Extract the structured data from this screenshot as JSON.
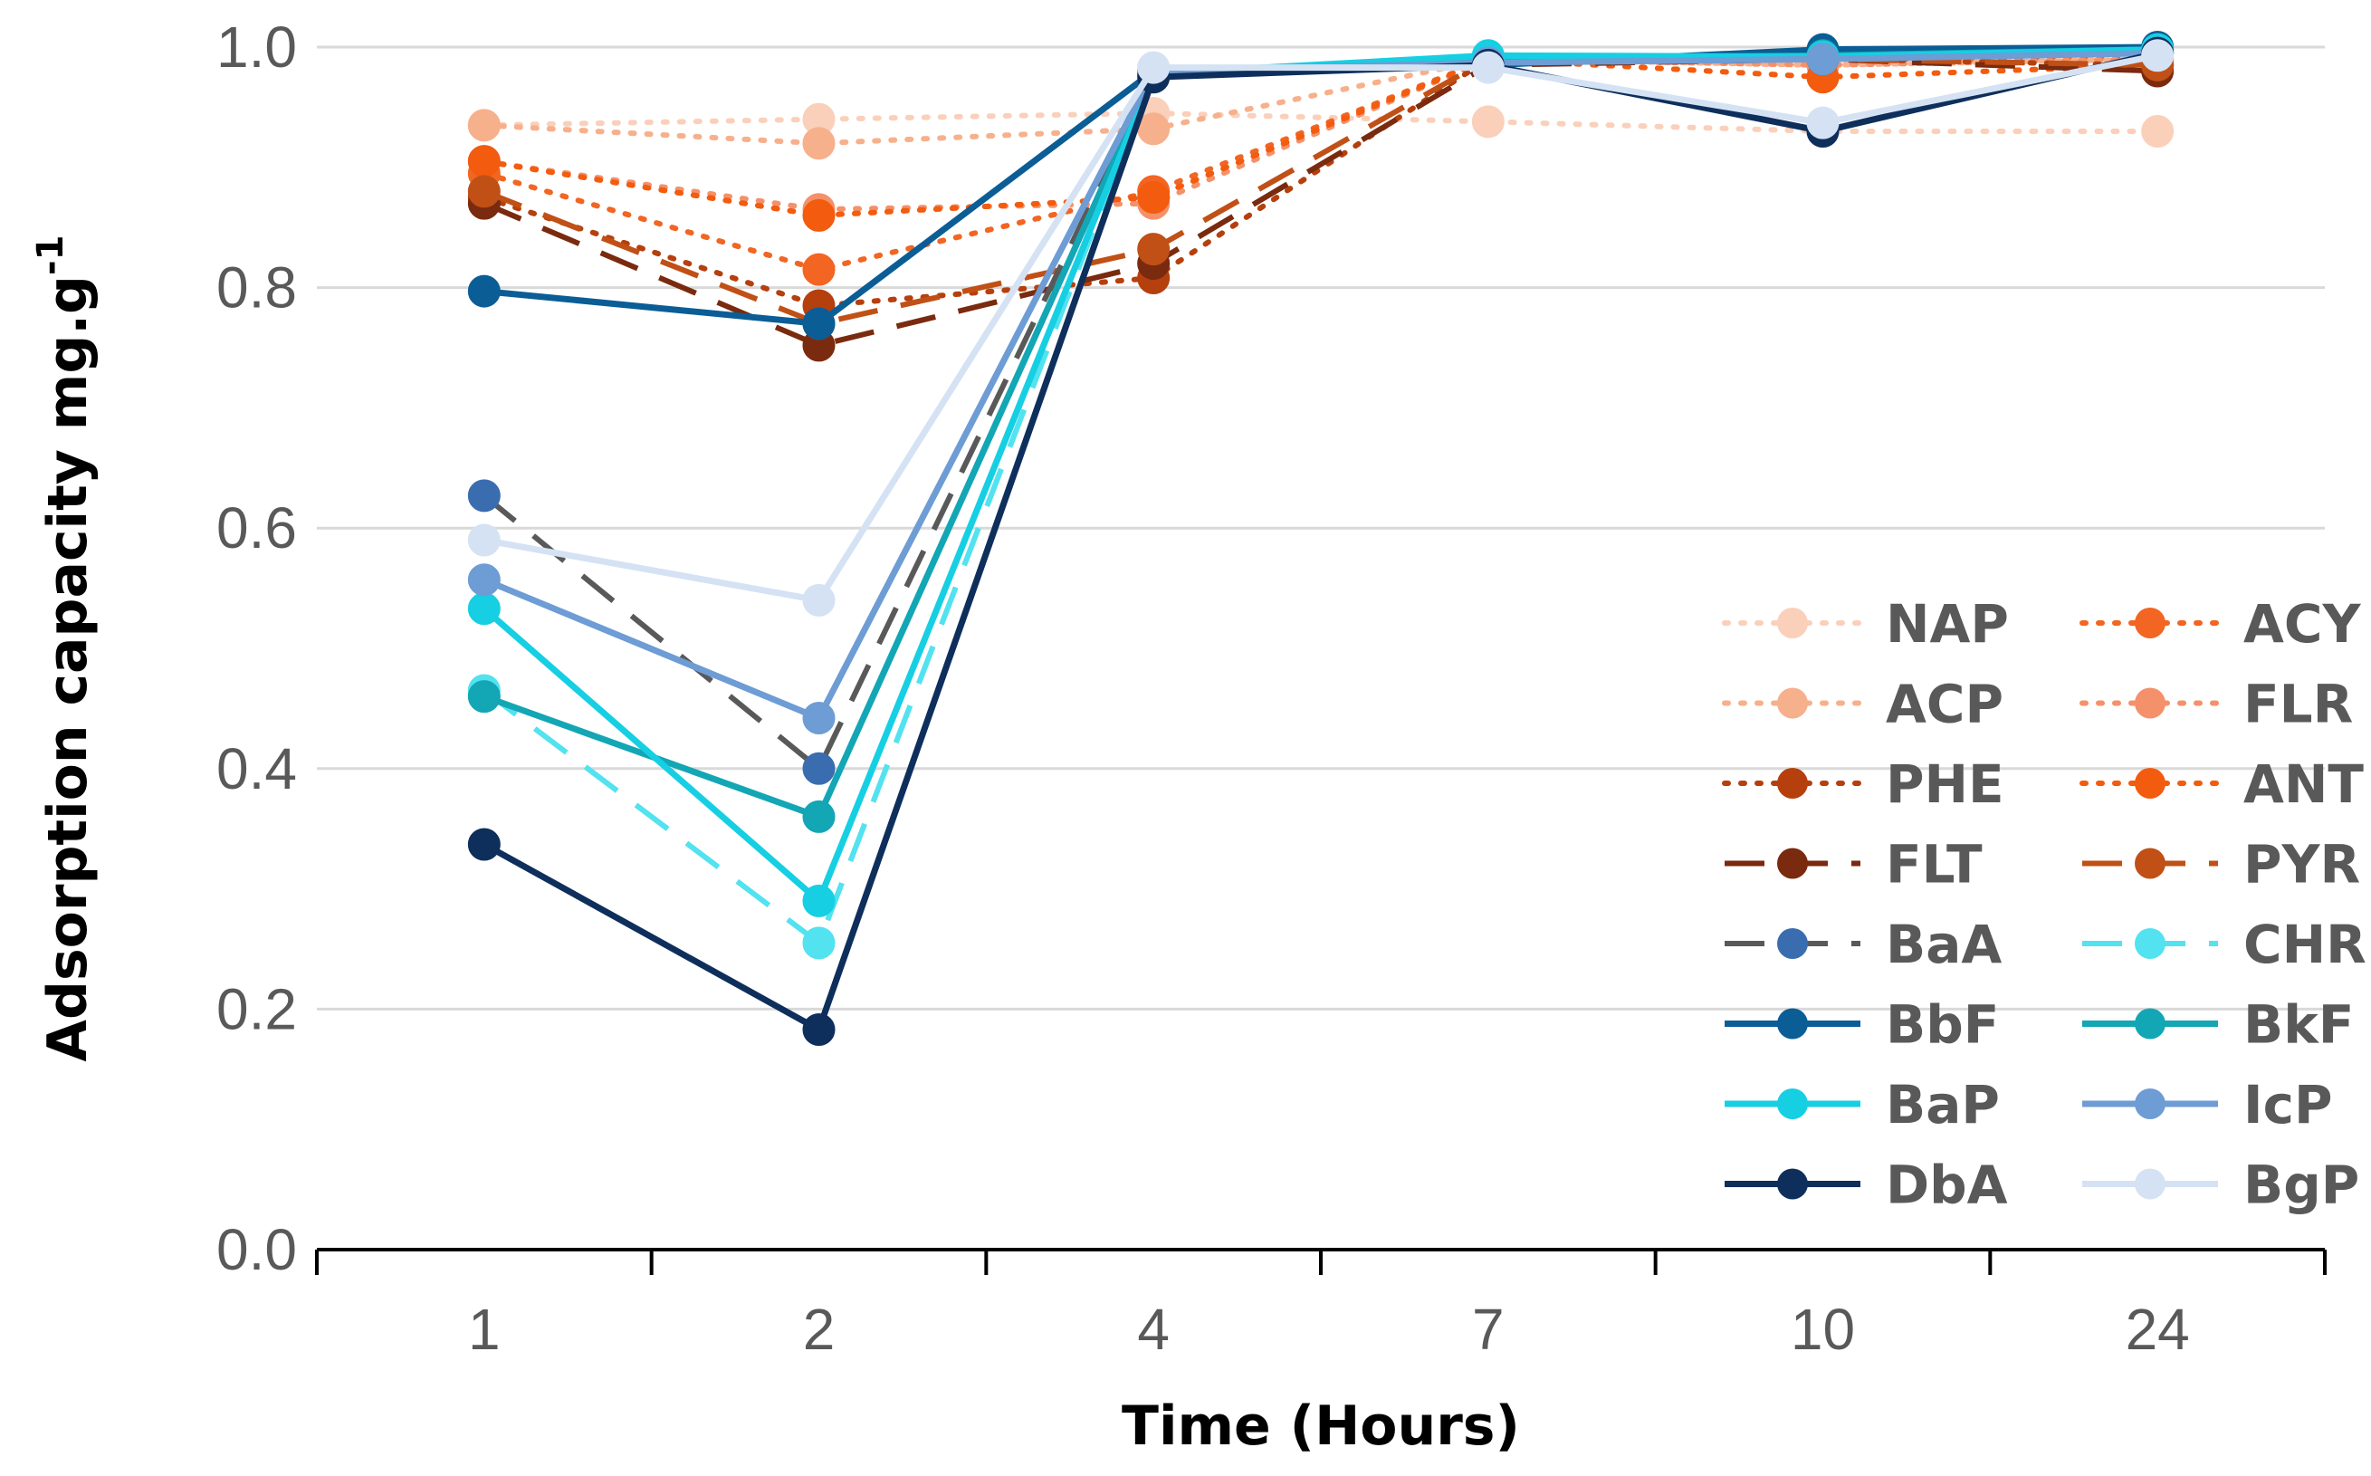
{
  "chart_data": {
    "type": "line",
    "title": "",
    "xlabel": "Time (Hours)",
    "ylabel": "Adsorption capacity mg.g",
    "ylabel_superscript": "-1",
    "categories": [
      "1",
      "2",
      "4",
      "7",
      "10",
      "24"
    ],
    "ylim": [
      0,
      1.0
    ],
    "yticks": [
      "0.0",
      "0.2",
      "0.4",
      "0.6",
      "0.8",
      "1.0"
    ],
    "grid": true,
    "legend_position": "right",
    "series": [
      {
        "name": "NAP",
        "color": "#FAD0BA",
        "dash": "dotted",
        "values": [
          0.935,
          0.94,
          0.945,
          0.938,
          0.93,
          0.93
        ]
      },
      {
        "name": "ACY",
        "color": "#F26522",
        "dash": "dotted",
        "values": [
          0.895,
          0.815,
          0.88,
          0.99,
          0.99,
          0.99
        ]
      },
      {
        "name": "ACP",
        "color": "#F7B08C",
        "dash": "dotted",
        "values": [
          0.935,
          0.92,
          0.932,
          0.99,
          0.985,
          0.99
        ]
      },
      {
        "name": "FLR",
        "color": "#F4916A",
        "dash": "dotted",
        "values": [
          0.905,
          0.865,
          0.87,
          0.99,
          0.985,
          0.99
        ]
      },
      {
        "name": "PHE",
        "color": "#B5400E",
        "dash": "dotted",
        "values": [
          0.875,
          0.785,
          0.808,
          0.99,
          0.99,
          0.985
        ]
      },
      {
        "name": "ANT",
        "color": "#F35B0E",
        "dash": "dotted",
        "values": [
          0.905,
          0.86,
          0.875,
          0.99,
          0.975,
          0.985
        ]
      },
      {
        "name": "FLT",
        "color": "#7A2A0E",
        "dash": "dashed",
        "values": [
          0.87,
          0.752,
          0.82,
          0.985,
          0.99,
          0.98
        ]
      },
      {
        "name": "PYR",
        "color": "#C05016",
        "dash": "dashed",
        "values": [
          0.88,
          0.77,
          0.832,
          0.99,
          0.99,
          0.985
        ]
      },
      {
        "name": "BaA",
        "color": "#595959",
        "markerColor": "#3A6DB0",
        "dash": "dashed",
        "values": [
          0.627,
          0.4,
          0.978,
          0.988,
          0.992,
          0.995
        ]
      },
      {
        "name": "CHR",
        "color": "#52E2F0",
        "dash": "dashed",
        "values": [
          0.465,
          0.255,
          0.978,
          0.992,
          0.992,
          0.995
        ]
      },
      {
        "name": "BbF",
        "color": "#0B5D96",
        "dash": "solid",
        "values": [
          0.797,
          0.77,
          0.98,
          0.985,
          0.998,
          1.0
        ]
      },
      {
        "name": "BkF",
        "color": "#13A6B5",
        "dash": "solid",
        "values": [
          0.46,
          0.36,
          0.978,
          0.99,
          0.993,
          0.998
        ]
      },
      {
        "name": "BaP",
        "color": "#16CFE3",
        "dash": "solid",
        "values": [
          0.533,
          0.29,
          0.978,
          0.993,
          0.992,
          0.998
        ]
      },
      {
        "name": "IcP",
        "color": "#6E9CD4",
        "dash": "solid",
        "values": [
          0.557,
          0.442,
          0.98,
          0.987,
          0.99,
          0.995
        ]
      },
      {
        "name": "DbA",
        "color": "#0E2F5C",
        "dash": "solid",
        "values": [
          0.337,
          0.183,
          0.975,
          0.985,
          0.93,
          0.995
        ]
      },
      {
        "name": "BgP",
        "color": "#D4E2F4",
        "dash": "solid",
        "values": [
          0.59,
          0.54,
          0.983,
          0.983,
          0.937,
          0.993
        ]
      }
    ]
  }
}
